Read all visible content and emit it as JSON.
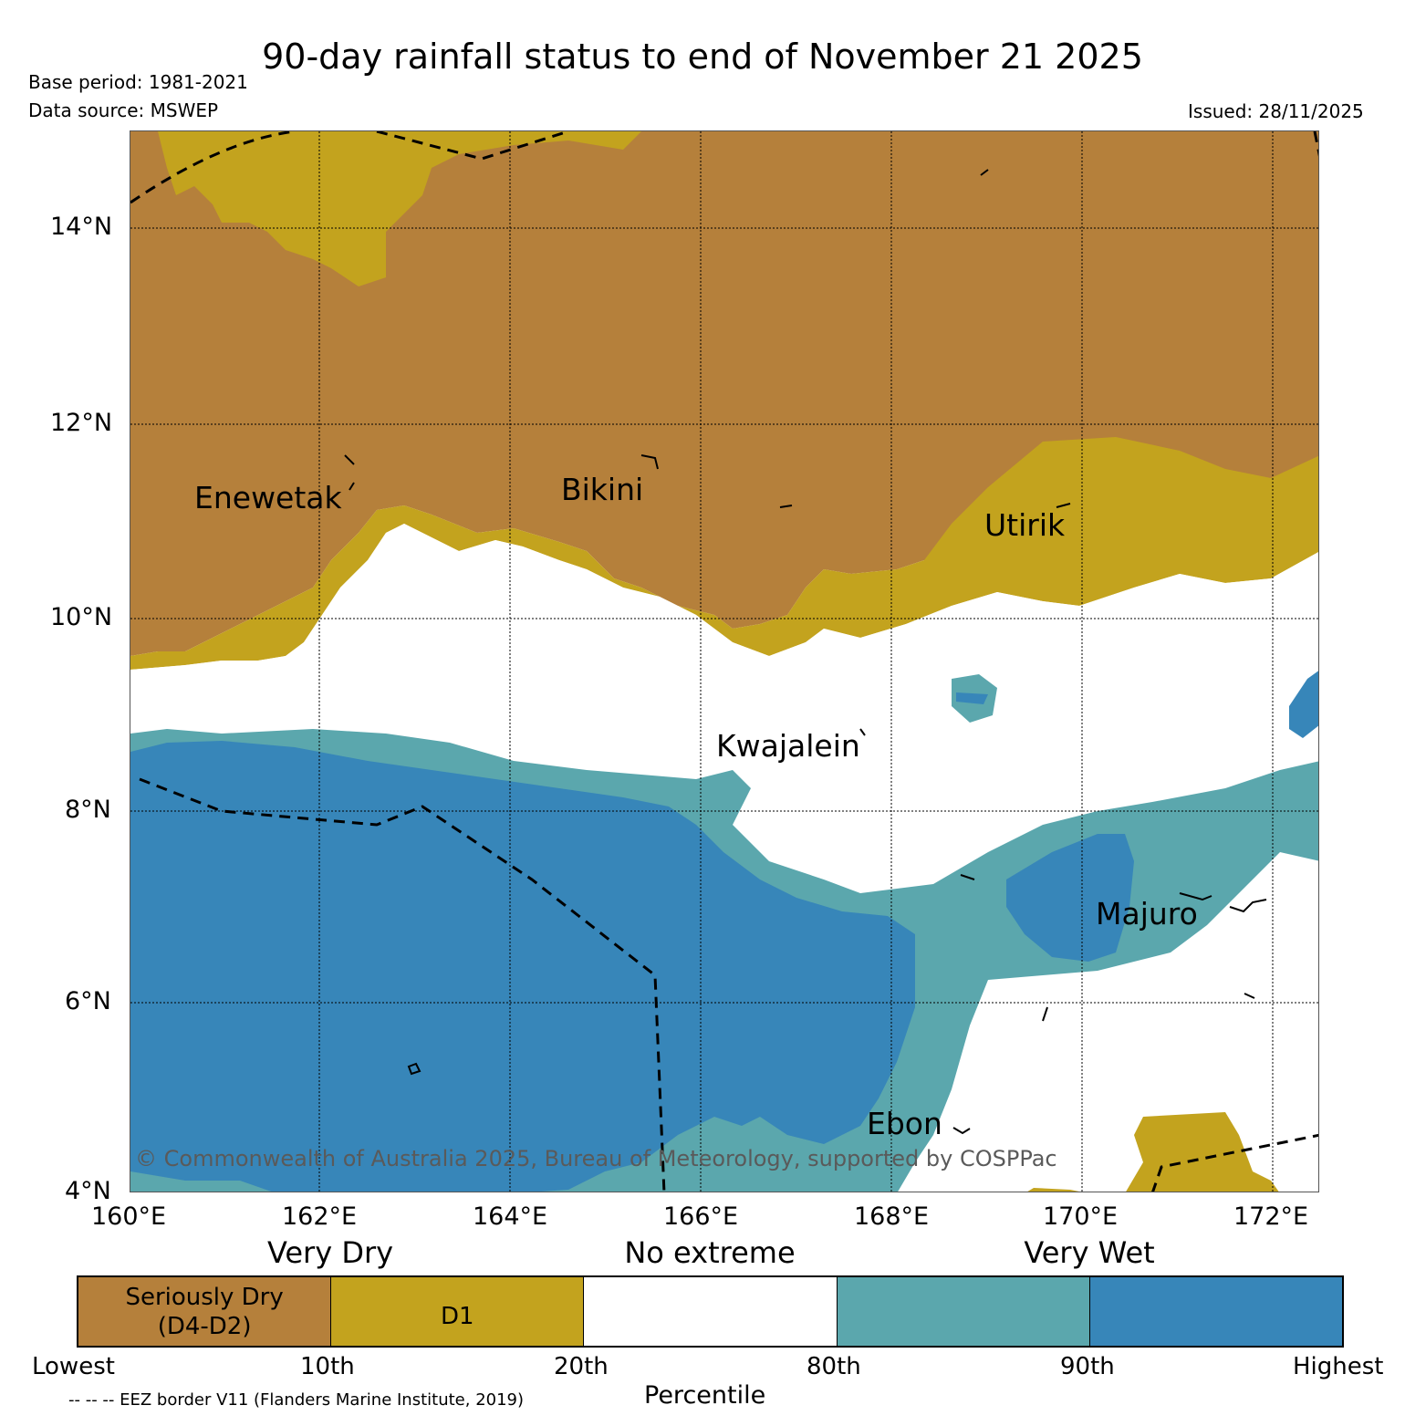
{
  "title": "90-day rainfall status to end of November 21 2025",
  "meta": {
    "base_period": "Base period: 1981-2021",
    "data_source": "Data source: MSWEP",
    "issued": "Issued: 28/11/2025"
  },
  "axes": {
    "lat_labels": [
      "14°N",
      "12°N",
      "10°N",
      "8°N",
      "6°N",
      "4°N"
    ],
    "lon_labels": [
      "160°E",
      "162°E",
      "164°E",
      "166°E",
      "168°E",
      "170°E",
      "172°E"
    ]
  },
  "places": {
    "enewetak": "Enewetak",
    "bikini": "Bikini",
    "utirik": "Utirik",
    "kwajalein": "Kwajalein",
    "majuro": "Majuro",
    "ebon": "Ebon"
  },
  "copyright": "© Commonwealth of Australia 2025, Bureau of Meteorology, supported by COSPPac",
  "legend": {
    "categories": {
      "very_dry": "Very Dry",
      "no_extreme": "No extreme",
      "very_wet": "Very Wet"
    },
    "segments": [
      {
        "line1": "Seriously Dry",
        "line2": "(D4-D2)",
        "color": "#b5803b"
      },
      {
        "line1": "D1",
        "line2": "",
        "color": "#c3a31e"
      },
      {
        "line1": "",
        "line2": "",
        "color": "#ffffff"
      },
      {
        "line1": "",
        "line2": "",
        "color": "#5ba7ad"
      },
      {
        "line1": "",
        "line2": "",
        "color": "#3786b9"
      }
    ],
    "ticks": [
      "Lowest",
      "10th",
      "20th",
      "80th",
      "90th",
      "Highest"
    ],
    "percentile_label": "Percentile",
    "eez_note": "-- -- -- EEZ border V11 (Flanders Marine Institute, 2019)"
  },
  "colors": {
    "seriously_dry": "#b5803b",
    "d1": "#c3a31e",
    "no_extreme": "#ffffff",
    "wet": "#5ba7ad",
    "very_wet": "#3786b9"
  }
}
